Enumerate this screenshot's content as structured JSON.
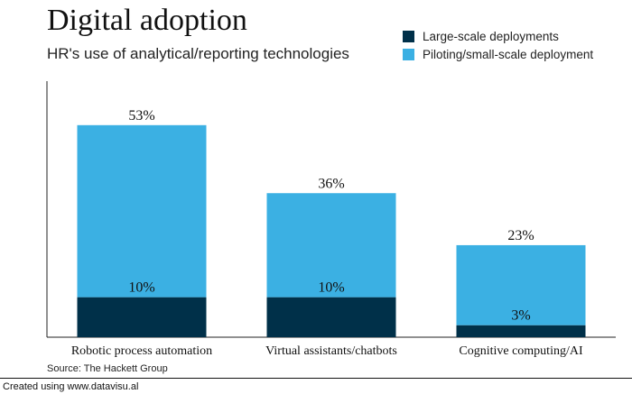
{
  "chart_data": {
    "type": "bar",
    "stacked": true,
    "title": "Digital adoption",
    "subtitle": "HR's use of analytical/reporting technologies",
    "categories": [
      "Robotic process automation",
      "Virtual assistants/chatbots",
      "Cognitive computing/AI"
    ],
    "series": [
      {
        "name": "Large-scale deployments",
        "color": "#003049",
        "values": [
          10,
          10,
          3
        ]
      },
      {
        "name": "Piloting/small-scale deployment",
        "color": "#3bb0e3",
        "values": [
          43,
          26,
          20
        ]
      }
    ],
    "total_labels": [
      "53%",
      "36%",
      "23%"
    ],
    "base_labels": [
      "10%",
      "10%",
      "3%"
    ],
    "ylim": [
      0,
      64
    ],
    "grid": false,
    "legend_position": "top-right",
    "source": "Source: The Hackett Group",
    "credit": "Created using www.datavisu.al"
  }
}
